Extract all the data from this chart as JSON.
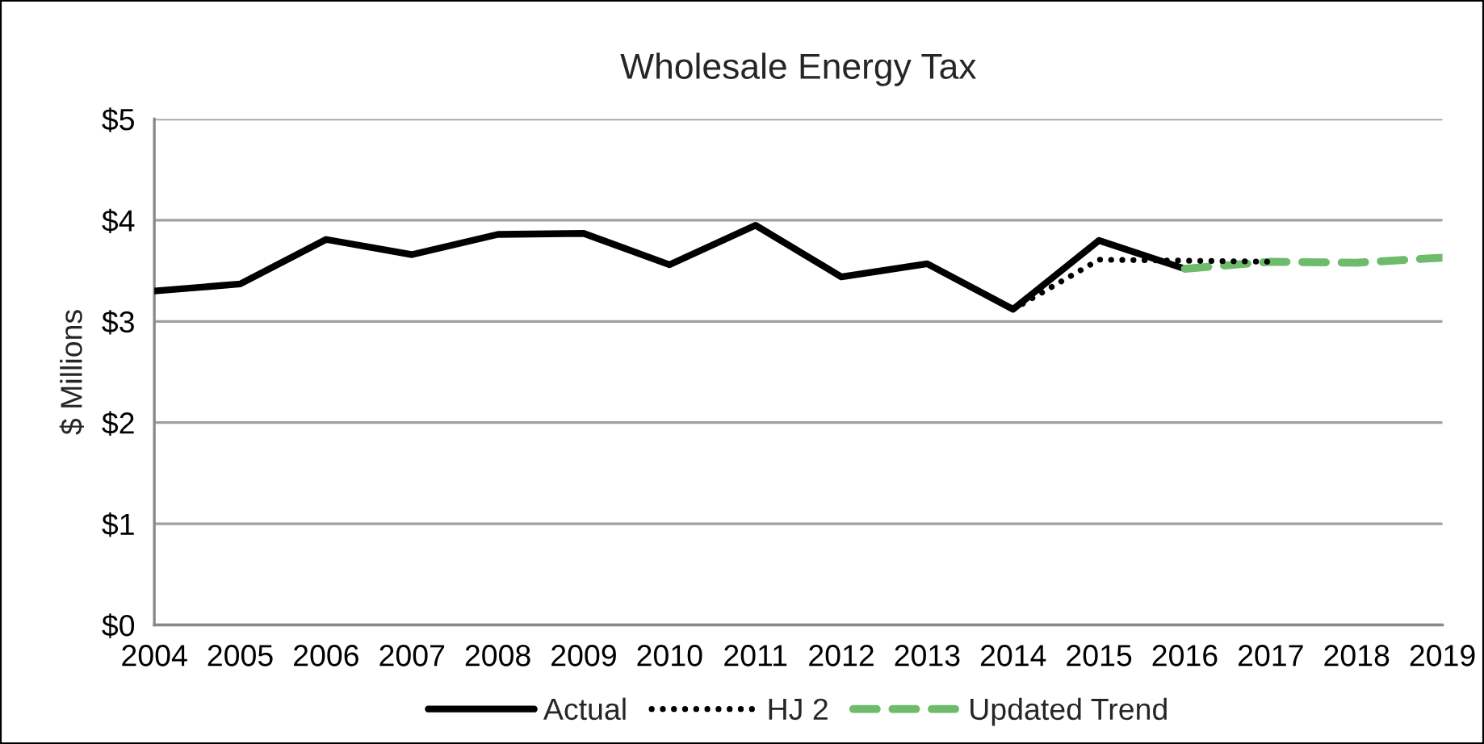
{
  "chart_data": {
    "type": "line",
    "title": "Wholesale Energy Tax",
    "ylabel": "$ Millions",
    "xlim": [
      2004,
      2019
    ],
    "xticks": [
      2004,
      2005,
      2006,
      2007,
      2008,
      2009,
      2010,
      2011,
      2012,
      2013,
      2014,
      2015,
      2016,
      2017,
      2018,
      2019
    ],
    "ylim": [
      0,
      5
    ],
    "yticks": [
      {
        "value": 0,
        "label": "$0"
      },
      {
        "value": 1,
        "label": "$1"
      },
      {
        "value": 2,
        "label": "$2"
      },
      {
        "value": 3,
        "label": "$3"
      },
      {
        "value": 4,
        "label": "$4"
      },
      {
        "value": 5,
        "label": "$5"
      }
    ],
    "grid": "y",
    "legend": "bottom",
    "marker": "none",
    "series": [
      {
        "name": "Actual",
        "color": "#000000",
        "line_style": "solid",
        "x": [
          2004,
          2005,
          2006,
          2007,
          2008,
          2009,
          2010,
          2011,
          2012,
          2013,
          2014,
          2015,
          2016
        ],
        "values": [
          3.3,
          3.37,
          3.81,
          3.66,
          3.86,
          3.87,
          3.56,
          3.95,
          3.44,
          3.57,
          3.12,
          3.8,
          3.52
        ]
      },
      {
        "name": "HJ 2",
        "color": "#000000",
        "line_style": "dotted",
        "x": [
          2014,
          2015,
          2016,
          2017
        ],
        "values": [
          3.12,
          3.61,
          3.6,
          3.59
        ]
      },
      {
        "name": "Updated Trend",
        "color": "#6dbb6b",
        "line_style": "dashed",
        "x": [
          2016,
          2017,
          2018,
          2019
        ],
        "values": [
          3.52,
          3.59,
          3.58,
          3.63
        ]
      }
    ]
  }
}
